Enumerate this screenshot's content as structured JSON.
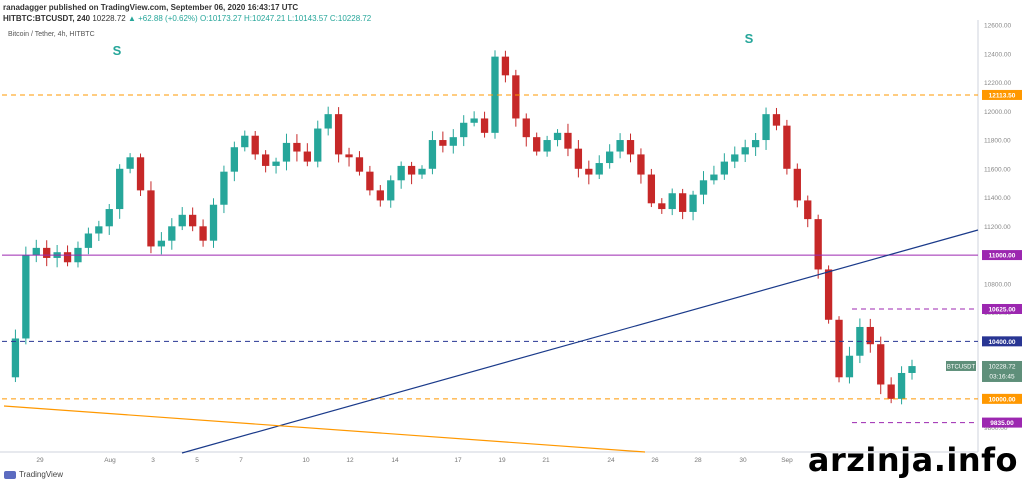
{
  "header": {
    "author_line": "ranadagger published on TradingView.com, September 06, 2020 16:43:17 UTC",
    "symbol": "HITBTC:BTCUSDT, 240",
    "last": "10228.72",
    "change": "▲ +62.88 (+0.62%)",
    "open": "O:10173.27",
    "high": "H:10247.21",
    "low": "L:10143.57",
    "close": "C:10228.72"
  },
  "chart_title": "Bitcoin / Tether, 4h, HITBTC",
  "watermark": "arzinja.info",
  "tv_logo": "TradingView",
  "colors": {
    "up": "#26a69a",
    "down": "#c62828",
    "orange": "#ff9800",
    "purple": "#9c27b0",
    "navy": "#283593",
    "trendline": "#1a3a8a"
  },
  "chart_data": {
    "type": "candlestick",
    "ylim": [
      9700,
      12600
    ],
    "y_ticks": [
      "12600.00",
      "12400.00",
      "12200.00",
      "12000.00",
      "11800.00",
      "11600.00",
      "11400.00",
      "11200.00",
      "11000.00",
      "10800.00",
      "10600.00",
      "10400.00",
      "10200.00",
      "10000.00",
      "9800.00"
    ],
    "x_labels": [
      "29",
      "Aug",
      "3",
      "5",
      "7",
      "10",
      "12",
      "14",
      "17",
      "19",
      "21",
      "24",
      "26",
      "28",
      "30",
      "Sep"
    ],
    "s_markers": [
      "S",
      "S"
    ],
    "levels": [
      {
        "label": "12113.50",
        "value": 12113.5,
        "style": "dashed",
        "color": "#ff9800",
        "marker": "12113.50"
      },
      {
        "label": "11000.00",
        "value": 11000,
        "style": "solid",
        "color": "#9c27b0"
      },
      {
        "label": "10625.00",
        "value": 10625,
        "style": "dashed",
        "color": "#9c27b0"
      },
      {
        "label": "10400.00",
        "value": 10400,
        "style": "dashed",
        "color": "#283593"
      },
      {
        "label": "10000.00",
        "value": 10000,
        "style": "dashed",
        "color": "#ff9800"
      },
      {
        "label": "9835.00",
        "value": 9835,
        "style": "dashed",
        "color": "#9c27b0"
      }
    ],
    "current_price": {
      "symbol": "BTCUSDT",
      "price": "10228.72",
      "countdown": "03:16:45"
    },
    "trendlines": [
      {
        "name": "rising-blue",
        "color": "#1a3a8a"
      },
      {
        "name": "falling-orange",
        "color": "#ff9800"
      }
    ],
    "close_path": [
      10150,
      10420,
      11000,
      11050,
      10980,
      11020,
      10950,
      11050,
      11150,
      11200,
      11320,
      11600,
      11680,
      11450,
      11060,
      11100,
      11200,
      11280,
      11200,
      11100,
      11350,
      11580,
      11750,
      11830,
      11700,
      11620,
      11650,
      11780,
      11720,
      11650,
      11880,
      11980,
      11700,
      11680,
      11580,
      11450,
      11380,
      11520,
      11620,
      11560,
      11600,
      11800,
      11760,
      11820,
      11920,
      11950,
      11850,
      12380,
      12250,
      11950,
      11820,
      11720,
      11800,
      11850,
      11740,
      11600,
      11560,
      11640,
      11720,
      11800,
      11700,
      11560,
      11360,
      11320,
      11430,
      11300,
      11420,
      11520,
      11560,
      11650,
      11700,
      11750,
      11800,
      11980,
      11900,
      11600,
      11380,
      11250,
      10900,
      10550,
      10150,
      10300,
      10500,
      10380,
      10100,
      10000,
      10180,
      10228
    ]
  }
}
